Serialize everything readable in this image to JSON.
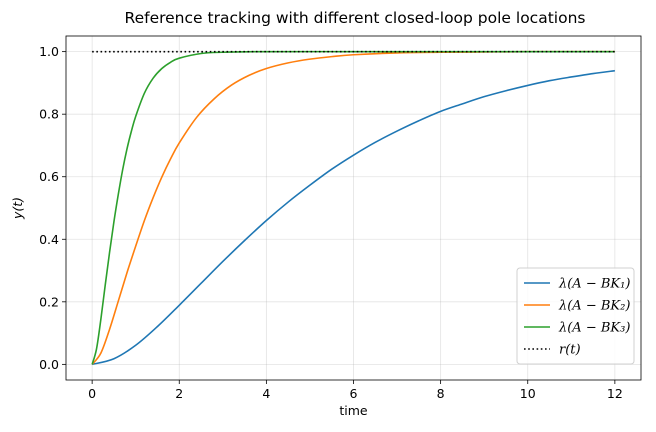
{
  "chart_data": {
    "type": "line",
    "title": "Reference tracking with different closed-loop pole locations",
    "xlabel": "time",
    "ylabel": "y(t)",
    "xlim": [
      -0.6,
      12.6
    ],
    "ylim": [
      -0.05,
      1.05
    ],
    "xticks": [
      0,
      2,
      4,
      6,
      8,
      10,
      12
    ],
    "yticks": [
      0.0,
      0.2,
      0.4,
      0.6,
      0.8,
      1.0
    ],
    "xtick_labels": [
      "0",
      "2",
      "4",
      "6",
      "8",
      "10",
      "12"
    ],
    "ytick_labels": [
      "0.0",
      "0.2",
      "0.4",
      "0.6",
      "0.8",
      "1.0"
    ],
    "grid": true,
    "legend_position": "lower-right",
    "series": [
      {
        "name": "λ(A − BK₁)",
        "color": "#1f77b4",
        "style": "solid",
        "x": [
          0,
          0.5,
          1,
          1.5,
          2,
          2.5,
          3,
          3.5,
          4,
          4.5,
          5,
          5.5,
          6,
          6.5,
          7,
          7.5,
          8,
          8.5,
          9,
          9.5,
          10,
          10.5,
          11,
          11.5,
          12
        ],
        "y": [
          0.0,
          0.018,
          0.061,
          0.121,
          0.189,
          0.259,
          0.329,
          0.396,
          0.46,
          0.519,
          0.573,
          0.624,
          0.669,
          0.71,
          0.746,
          0.779,
          0.809,
          0.833,
          0.856,
          0.875,
          0.892,
          0.907,
          0.919,
          0.93,
          0.939
        ]
      },
      {
        "name": "λ(A − BK₂)",
        "color": "#ff7f0e",
        "style": "solid",
        "x": [
          0,
          0.2,
          0.4,
          0.6,
          0.8,
          1,
          1.2,
          1.4,
          1.6,
          1.8,
          2,
          2.4,
          2.8,
          3.2,
          3.6,
          4,
          4.5,
          5,
          5.5,
          6,
          7,
          8,
          9,
          10,
          11,
          12
        ],
        "y": [
          0.0,
          0.036,
          0.112,
          0.202,
          0.293,
          0.378,
          0.46,
          0.533,
          0.599,
          0.657,
          0.708,
          0.79,
          0.849,
          0.893,
          0.924,
          0.946,
          0.964,
          0.976,
          0.984,
          0.99,
          0.996,
          0.998,
          0.999,
          1.0,
          1.0,
          1.0
        ]
      },
      {
        "name": "λ(A − BK₃)",
        "color": "#2ca02c",
        "style": "solid",
        "x": [
          0,
          0.1,
          0.2,
          0.3,
          0.4,
          0.5,
          0.6,
          0.7,
          0.8,
          0.9,
          1,
          1.2,
          1.4,
          1.6,
          1.8,
          2,
          2.5,
          3,
          4,
          6,
          8,
          10,
          12
        ],
        "y": [
          0.0,
          0.049,
          0.144,
          0.253,
          0.358,
          0.456,
          0.543,
          0.622,
          0.689,
          0.745,
          0.793,
          0.867,
          0.915,
          0.946,
          0.966,
          0.979,
          0.994,
          0.998,
          1.0,
          1.0,
          1.0,
          1.0,
          1.0
        ]
      },
      {
        "name": "r(t)",
        "color": "#000000",
        "style": "dotted",
        "x": [
          0,
          12
        ],
        "y": [
          1.0,
          1.0
        ]
      }
    ]
  }
}
